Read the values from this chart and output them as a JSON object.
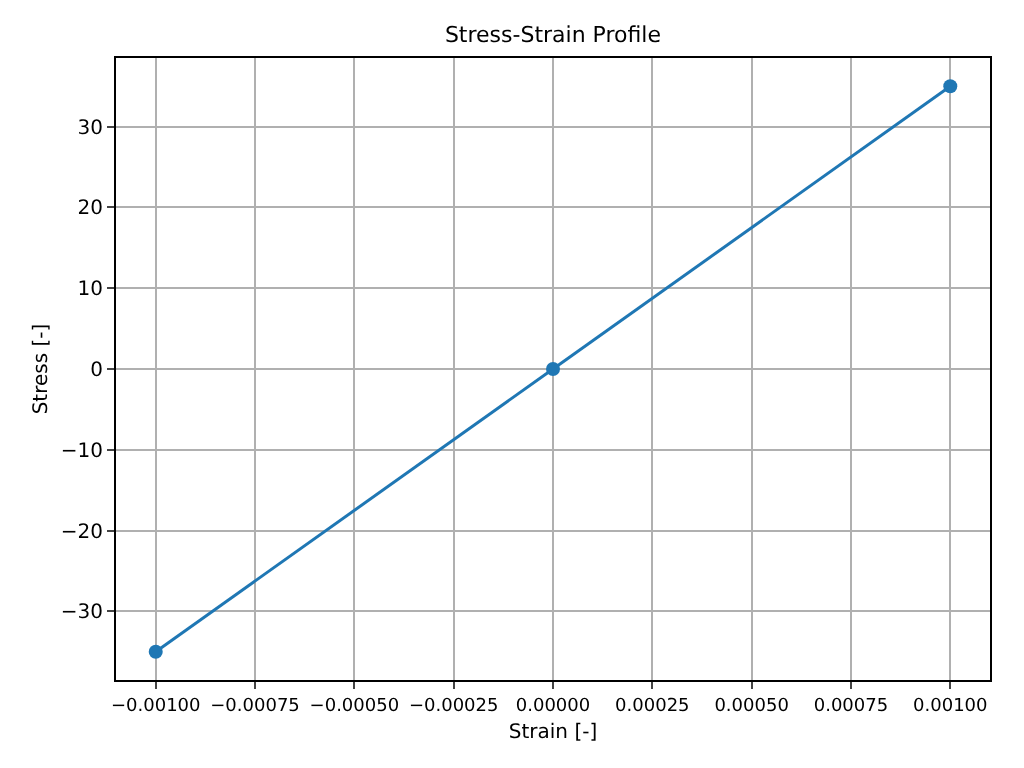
{
  "chart_data": {
    "type": "line",
    "title": "Stress-Strain Profile",
    "xlabel": "Strain [-]",
    "ylabel": "Stress [-]",
    "x": [
      -0.001,
      0,
      0.001
    ],
    "series": [
      {
        "color": "#1f77b4",
        "values": [
          -35,
          0,
          35
        ]
      }
    ],
    "xlim": [
      -0.0011,
      0.0011
    ],
    "xticks": [
      {
        "value": -0.001,
        "label": "−0.00100"
      },
      {
        "value": -0.00075,
        "label": "−0.00075"
      },
      {
        "value": -0.0005,
        "label": "−0.00050"
      },
      {
        "value": -0.00025,
        "label": "−0.00025"
      },
      {
        "value": 0,
        "label": "0.00000"
      },
      {
        "value": 0.00025,
        "label": "0.00025"
      },
      {
        "value": 0.0005,
        "label": "0.00050"
      },
      {
        "value": 0.00075,
        "label": "0.00075"
      },
      {
        "value": 0.001,
        "label": "0.00100"
      }
    ],
    "ylim": [
      -38.5,
      38.5
    ],
    "yticks": [
      {
        "value": -30,
        "label": "−30"
      },
      {
        "value": -20,
        "label": "−20"
      },
      {
        "value": -10,
        "label": "−10"
      },
      0,
      10,
      20,
      30
    ],
    "grid": true,
    "marker": "circle",
    "line_style": "solid"
  }
}
